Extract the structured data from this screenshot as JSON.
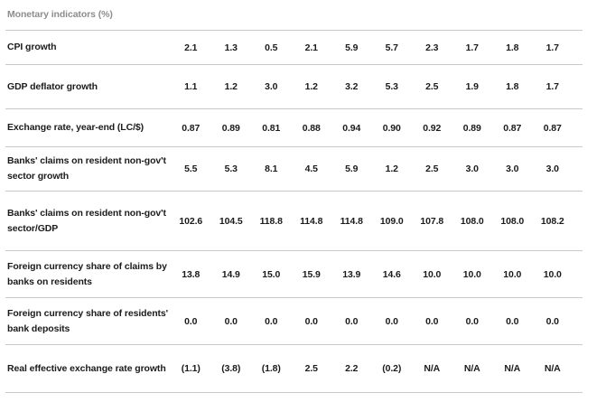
{
  "title": "Monetary indicators (%)",
  "colors": {
    "background": "#ffffff",
    "text": "#1b1b1b",
    "title_text": "#8d8d8d",
    "divider": "#c9c9c9"
  },
  "table": {
    "rows": [
      {
        "label": "CPI growth",
        "label_lines": [
          "CPI growth"
        ],
        "values": [
          "2.1",
          "1.3",
          "0.5",
          "2.1",
          "5.9",
          "5.7",
          "2.3",
          "1.7",
          "1.8",
          "1.7"
        ]
      },
      {
        "label": "GDP deflator growth",
        "label_lines": [
          "GDP deflator growth"
        ],
        "values": [
          "1.1",
          "1.2",
          "3.0",
          "1.2",
          "3.2",
          "5.3",
          "2.5",
          "1.9",
          "1.8",
          "1.7"
        ]
      },
      {
        "label": "Exchange rate, year-end (LC/$)",
        "label_lines": [
          "Exchange rate, year-end (LC/$)"
        ],
        "values": [
          "0.87",
          "0.89",
          "0.81",
          "0.88",
          "0.94",
          "0.90",
          "0.92",
          "0.89",
          "0.87",
          "0.87"
        ]
      },
      {
        "label": "Banks' claims on resident non-gov't sector growth",
        "label_lines": [
          "Banks' claims on resident non-gov't",
          "sector growth"
        ],
        "values": [
          "5.5",
          "5.3",
          "8.1",
          "4.5",
          "5.9",
          "1.2",
          "2.5",
          "3.0",
          "3.0",
          "3.0"
        ]
      },
      {
        "label": "Banks' claims on resident non-gov't sector/GDP",
        "label_lines": [
          "Banks' claims on resident non-gov't",
          "sector/GDP"
        ],
        "values": [
          "102.6",
          "104.5",
          "118.8",
          "114.8",
          "114.8",
          "109.0",
          "107.8",
          "108.0",
          "108.0",
          "108.2"
        ]
      },
      {
        "label": "Foreign currency share of claims by banks on residents",
        "label_lines": [
          "Foreign currency share of claims by",
          "banks on residents"
        ],
        "values": [
          "13.8",
          "14.9",
          "15.0",
          "15.9",
          "13.9",
          "14.6",
          "10.0",
          "10.0",
          "10.0",
          "10.0"
        ]
      },
      {
        "label": "Foreign currency share of residents' bank deposits",
        "label_lines": [
          "Foreign currency share of residents'",
          "bank deposits"
        ],
        "values": [
          "0.0",
          "0.0",
          "0.0",
          "0.0",
          "0.0",
          "0.0",
          "0.0",
          "0.0",
          "0.0",
          "0.0"
        ]
      },
      {
        "label": "Real effective exchange rate growth",
        "label_lines": [
          "Real effective exchange rate growth"
        ],
        "values": [
          "(1.1)",
          "(3.8)",
          "(1.8)",
          "2.5",
          "2.2",
          "(0.2)",
          "N/A",
          "N/A",
          "N/A",
          "N/A"
        ]
      }
    ]
  }
}
